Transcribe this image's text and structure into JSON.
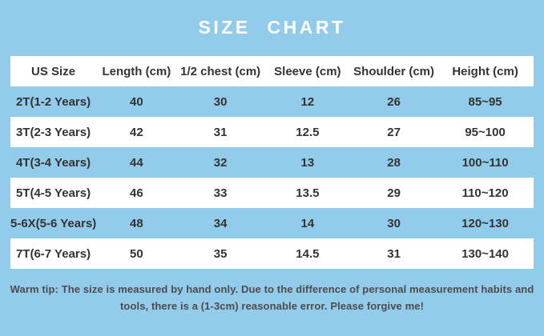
{
  "colors": {
    "page_background": "#93CBEB",
    "row_highlight_white": "#FFFFFF",
    "title_text": "#FFFFFF",
    "table_text": "#333333",
    "tip_text": "#4C4C4C"
  },
  "chart_data": {
    "type": "table",
    "title": "SIZE CHART",
    "columns": [
      "US Size",
      "Length (cm)",
      "1/2 chest (cm)",
      "Sleeve (cm)",
      "Shoulder (cm)",
      "Height (cm)"
    ],
    "rows": [
      [
        "2T(1-2 Years)",
        "40",
        "30",
        "12",
        "26",
        "85~95"
      ],
      [
        "3T(2-3 Years)",
        "42",
        "31",
        "12.5",
        "27",
        "95~100"
      ],
      [
        "4T(3-4 Years)",
        "44",
        "32",
        "13",
        "28",
        "100~110"
      ],
      [
        "5T(4-5 Years)",
        "46",
        "33",
        "13.5",
        "29",
        "110~120"
      ],
      [
        "5-6X(5-6 Years)",
        "48",
        "34",
        "14",
        "30",
        "120~130"
      ],
      [
        "7T(6-7 Years)",
        "50",
        "35",
        "14.5",
        "31",
        "130~140"
      ]
    ],
    "layout_hints": {
      "header_row_background": "white",
      "body_striping": "blue (page background), white, alternating starting with blue"
    }
  },
  "footer": {
    "warm_tip_lines": [
      "Warm tip: The size is measured by hand only. Due to the difference of personal measurement habits and",
      "tools, there is a (1-3cm) reasonable error. Please forgive me!"
    ]
  }
}
